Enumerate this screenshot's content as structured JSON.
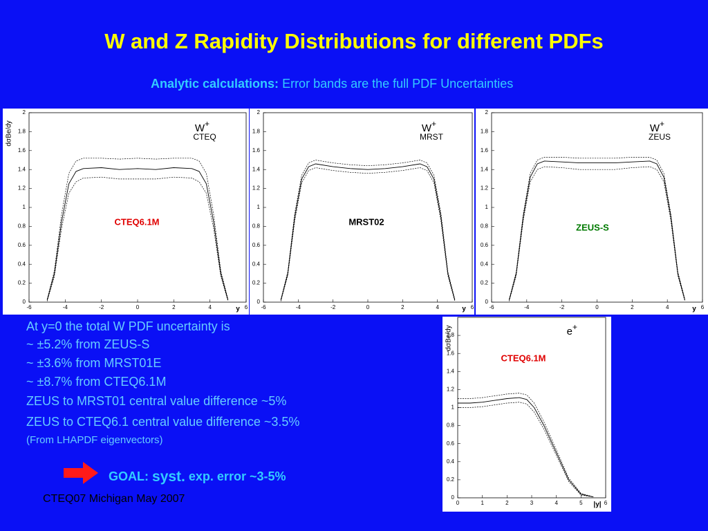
{
  "slide": {
    "title": "W and Z Rapidity Distributions for different PDFs",
    "subtitle_bold": "Analytic calculations:",
    "subtitle_rest": " Error bands are the full PDF Uncertainties",
    "body": [
      "At y=0 the total W PDF uncertainty is",
      "~ ±5.2% from ZEUS-S",
      "~ ±3.6% from MRST01E",
      "~ ±8.7% from CTEQ6.1M",
      "ZEUS to MRST01 central value difference ~5%",
      "ZEUS to CTEQ6.1 central value difference ~3.5%"
    ],
    "note": "(From LHAPDF eigenvectors)",
    "goal": "GOAL:",
    "goal_syst": "syst.",
    "goal_rest": "exp. error ~3-5%",
    "footer": "CTEQ07 Michigan May 2007"
  },
  "chart_data": [
    {
      "type": "line",
      "ylabel": "dσBe/dy",
      "xlabel": "y",
      "label": "W",
      "label_sup": "+",
      "label2": "CTEQ",
      "annotation": "CTEQ6.1M",
      "annotation_color": "#e00000",
      "x": [
        -5,
        -4.6,
        -4.2,
        -3.8,
        -3.4,
        -3,
        -2,
        -1,
        0,
        1,
        2,
        3,
        3.4,
        3.8,
        4.2,
        4.6,
        5
      ],
      "series": [
        {
          "color": "#000000",
          "dash": false,
          "values": [
            0.02,
            0.3,
            0.85,
            1.25,
            1.38,
            1.41,
            1.42,
            1.4,
            1.41,
            1.4,
            1.42,
            1.41,
            1.38,
            1.25,
            0.85,
            0.3,
            0.02
          ]
        },
        {
          "color": "#000000",
          "dash": true,
          "values": [
            0.03,
            0.33,
            0.93,
            1.36,
            1.49,
            1.52,
            1.52,
            1.51,
            1.52,
            1.51,
            1.52,
            1.52,
            1.49,
            1.36,
            0.93,
            0.33,
            0.03
          ]
        },
        {
          "color": "#000000",
          "dash": true,
          "values": [
            0.01,
            0.27,
            0.78,
            1.15,
            1.27,
            1.31,
            1.32,
            1.3,
            1.3,
            1.3,
            1.32,
            1.31,
            1.27,
            1.15,
            0.78,
            0.27,
            0.01
          ]
        }
      ],
      "xlim": [
        -6,
        6
      ],
      "ylim": [
        0,
        2
      ],
      "xticks": [
        -6,
        -4,
        -2,
        0,
        2,
        4,
        6
      ],
      "yticks": [
        0,
        0.2,
        0.4,
        0.6,
        0.8,
        1,
        1.2,
        1.4,
        1.6,
        1.8,
        2
      ]
    },
    {
      "type": "line",
      "xlabel": "y",
      "label": "W",
      "label_sup": "+",
      "label2": "MRST",
      "annotation": "MRST02",
      "annotation_color": "#000000",
      "x": [
        -5,
        -4.6,
        -4.2,
        -3.8,
        -3.4,
        -3,
        -2,
        -1,
        0,
        1,
        2,
        3,
        3.4,
        3.8,
        4.2,
        4.6,
        5
      ],
      "series": [
        {
          "color": "#000000",
          "dash": false,
          "values": [
            0.02,
            0.3,
            0.9,
            1.3,
            1.43,
            1.46,
            1.43,
            1.41,
            1.4,
            1.41,
            1.43,
            1.46,
            1.43,
            1.3,
            0.9,
            0.3,
            0.02
          ]
        },
        {
          "color": "#000000",
          "dash": true,
          "values": [
            0.03,
            0.32,
            0.94,
            1.34,
            1.47,
            1.5,
            1.47,
            1.45,
            1.44,
            1.45,
            1.47,
            1.5,
            1.47,
            1.34,
            0.94,
            0.32,
            0.03
          ]
        },
        {
          "color": "#000000",
          "dash": true,
          "values": [
            0.01,
            0.28,
            0.86,
            1.26,
            1.39,
            1.42,
            1.39,
            1.37,
            1.36,
            1.37,
            1.39,
            1.42,
            1.39,
            1.26,
            0.86,
            0.28,
            0.01
          ]
        }
      ],
      "xlim": [
        -6,
        6
      ],
      "ylim": [
        0,
        2
      ],
      "xticks": [
        -6,
        -4,
        -2,
        0,
        2,
        4,
        6
      ],
      "yticks": [
        0,
        0.2,
        0.4,
        0.6,
        0.8,
        1,
        1.2,
        1.4,
        1.6,
        1.8,
        2
      ]
    },
    {
      "type": "line",
      "xlabel": "y",
      "label": "W",
      "label_sup": "+",
      "label2": "ZEUS",
      "annotation": "ZEUS-S",
      "annotation_color": "#007a00",
      "x": [
        -5,
        -4.6,
        -4.2,
        -3.8,
        -3.4,
        -3,
        -2,
        -1,
        0,
        1,
        2,
        3,
        3.4,
        3.8,
        4.2,
        4.6,
        5
      ],
      "series": [
        {
          "color": "#000000",
          "dash": false,
          "values": [
            0.02,
            0.3,
            0.9,
            1.32,
            1.46,
            1.49,
            1.48,
            1.47,
            1.47,
            1.47,
            1.48,
            1.49,
            1.46,
            1.32,
            0.9,
            0.3,
            0.02
          ]
        },
        {
          "color": "#000000",
          "dash": true,
          "values": [
            0.03,
            0.32,
            0.93,
            1.36,
            1.5,
            1.53,
            1.53,
            1.52,
            1.52,
            1.52,
            1.53,
            1.53,
            1.5,
            1.36,
            0.93,
            0.32,
            0.03
          ]
        },
        {
          "color": "#000000",
          "dash": true,
          "values": [
            0.01,
            0.28,
            0.86,
            1.27,
            1.4,
            1.43,
            1.42,
            1.4,
            1.4,
            1.4,
            1.42,
            1.43,
            1.4,
            1.27,
            0.86,
            0.28,
            0.01
          ]
        }
      ],
      "xlim": [
        -6,
        6
      ],
      "ylim": [
        0,
        2
      ],
      "xticks": [
        -6,
        -4,
        -2,
        0,
        2,
        4,
        6
      ],
      "yticks": [
        0,
        0.2,
        0.4,
        0.6,
        0.8,
        1,
        1.2,
        1.4,
        1.6,
        1.8,
        2
      ]
    },
    {
      "type": "line",
      "ylabel": "dσBe/dy",
      "xlabel": "|y|",
      "label": "e",
      "label_sup": "+",
      "annotation": "CTEQ6.1M",
      "annotation_color": "#e00000",
      "x": [
        0,
        0.5,
        1,
        1.5,
        2,
        2.5,
        2.8,
        3.1,
        3.5,
        4,
        4.5,
        5,
        5.5
      ],
      "series": [
        {
          "color": "#000000",
          "dash": false,
          "values": [
            1.05,
            1.05,
            1.06,
            1.08,
            1.1,
            1.11,
            1.09,
            1.0,
            0.8,
            0.5,
            0.2,
            0.04,
            0.01
          ]
        },
        {
          "color": "#000000",
          "dash": true,
          "values": [
            1.1,
            1.1,
            1.11,
            1.13,
            1.15,
            1.16,
            1.14,
            1.05,
            0.84,
            0.53,
            0.22,
            0.05,
            0.01
          ]
        },
        {
          "color": "#000000",
          "dash": true,
          "values": [
            1.0,
            1.0,
            1.01,
            1.03,
            1.05,
            1.06,
            1.04,
            0.95,
            0.76,
            0.47,
            0.18,
            0.03,
            0.01
          ]
        }
      ],
      "xlim": [
        0,
        6
      ],
      "ylim": [
        0,
        2
      ],
      "xticks": [
        0,
        1,
        2,
        3,
        4,
        5,
        6
      ],
      "yticks": [
        0,
        0.2,
        0.4,
        0.6,
        0.8,
        1,
        1.2,
        1.4,
        1.6,
        1.8
      ]
    }
  ]
}
